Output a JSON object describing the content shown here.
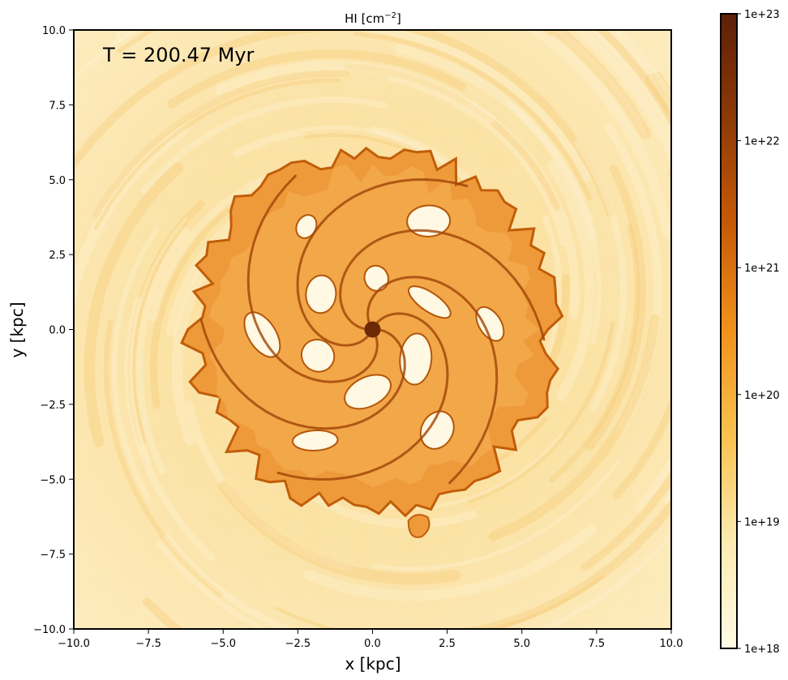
{
  "chart_data": {
    "type": "heatmap",
    "title": "HI [cm",
    "title_superscript": "−2",
    "title_close": "]",
    "annotation": "T = 200.47 Myr",
    "xlabel": "x [kpc]",
    "ylabel": "y [kpc]",
    "xlim": [
      -10.0,
      10.0
    ],
    "ylim": [
      -10.0,
      10.0
    ],
    "x_ticks": [
      -10.0,
      -7.5,
      -5.0,
      -2.5,
      0.0,
      2.5,
      5.0,
      7.5,
      10.0
    ],
    "x_tick_labels": [
      "−10.0",
      "−7.5",
      "−5.0",
      "−2.5",
      "0.0",
      "2.5",
      "5.0",
      "7.5",
      "10.0"
    ],
    "y_ticks": [
      -10.0,
      -7.5,
      -5.0,
      -2.5,
      0.0,
      2.5,
      5.0,
      7.5,
      10.0
    ],
    "y_tick_labels": [
      "−10.0",
      "−7.5",
      "−5.0",
      "−2.5",
      "0.0",
      "2.5",
      "5.0",
      "7.5",
      "10.0"
    ],
    "grid": false,
    "colorbar": {
      "scale": "log",
      "range": [
        1e+18,
        1e+23
      ],
      "ticks": [
        1e+18,
        1e+19,
        1e+20,
        1e+21,
        1e+22,
        1e+23
      ],
      "tick_labels": [
        "1e+18",
        "1e+19",
        "1e+20",
        "1e+21",
        "1e+22",
        "1e+23"
      ],
      "colormap_stops": [
        "#fffbe4",
        "#fdebb2",
        "#f9c24f",
        "#f0921c",
        "#c85a06",
        "#8e3a05",
        "#5e200a"
      ]
    },
    "field": {
      "description_free": true,
      "center": [
        0.0,
        0.0
      ],
      "disk_outer_radius_kpc": 6.0,
      "arms": 6,
      "background_level": 1e+19
    }
  }
}
